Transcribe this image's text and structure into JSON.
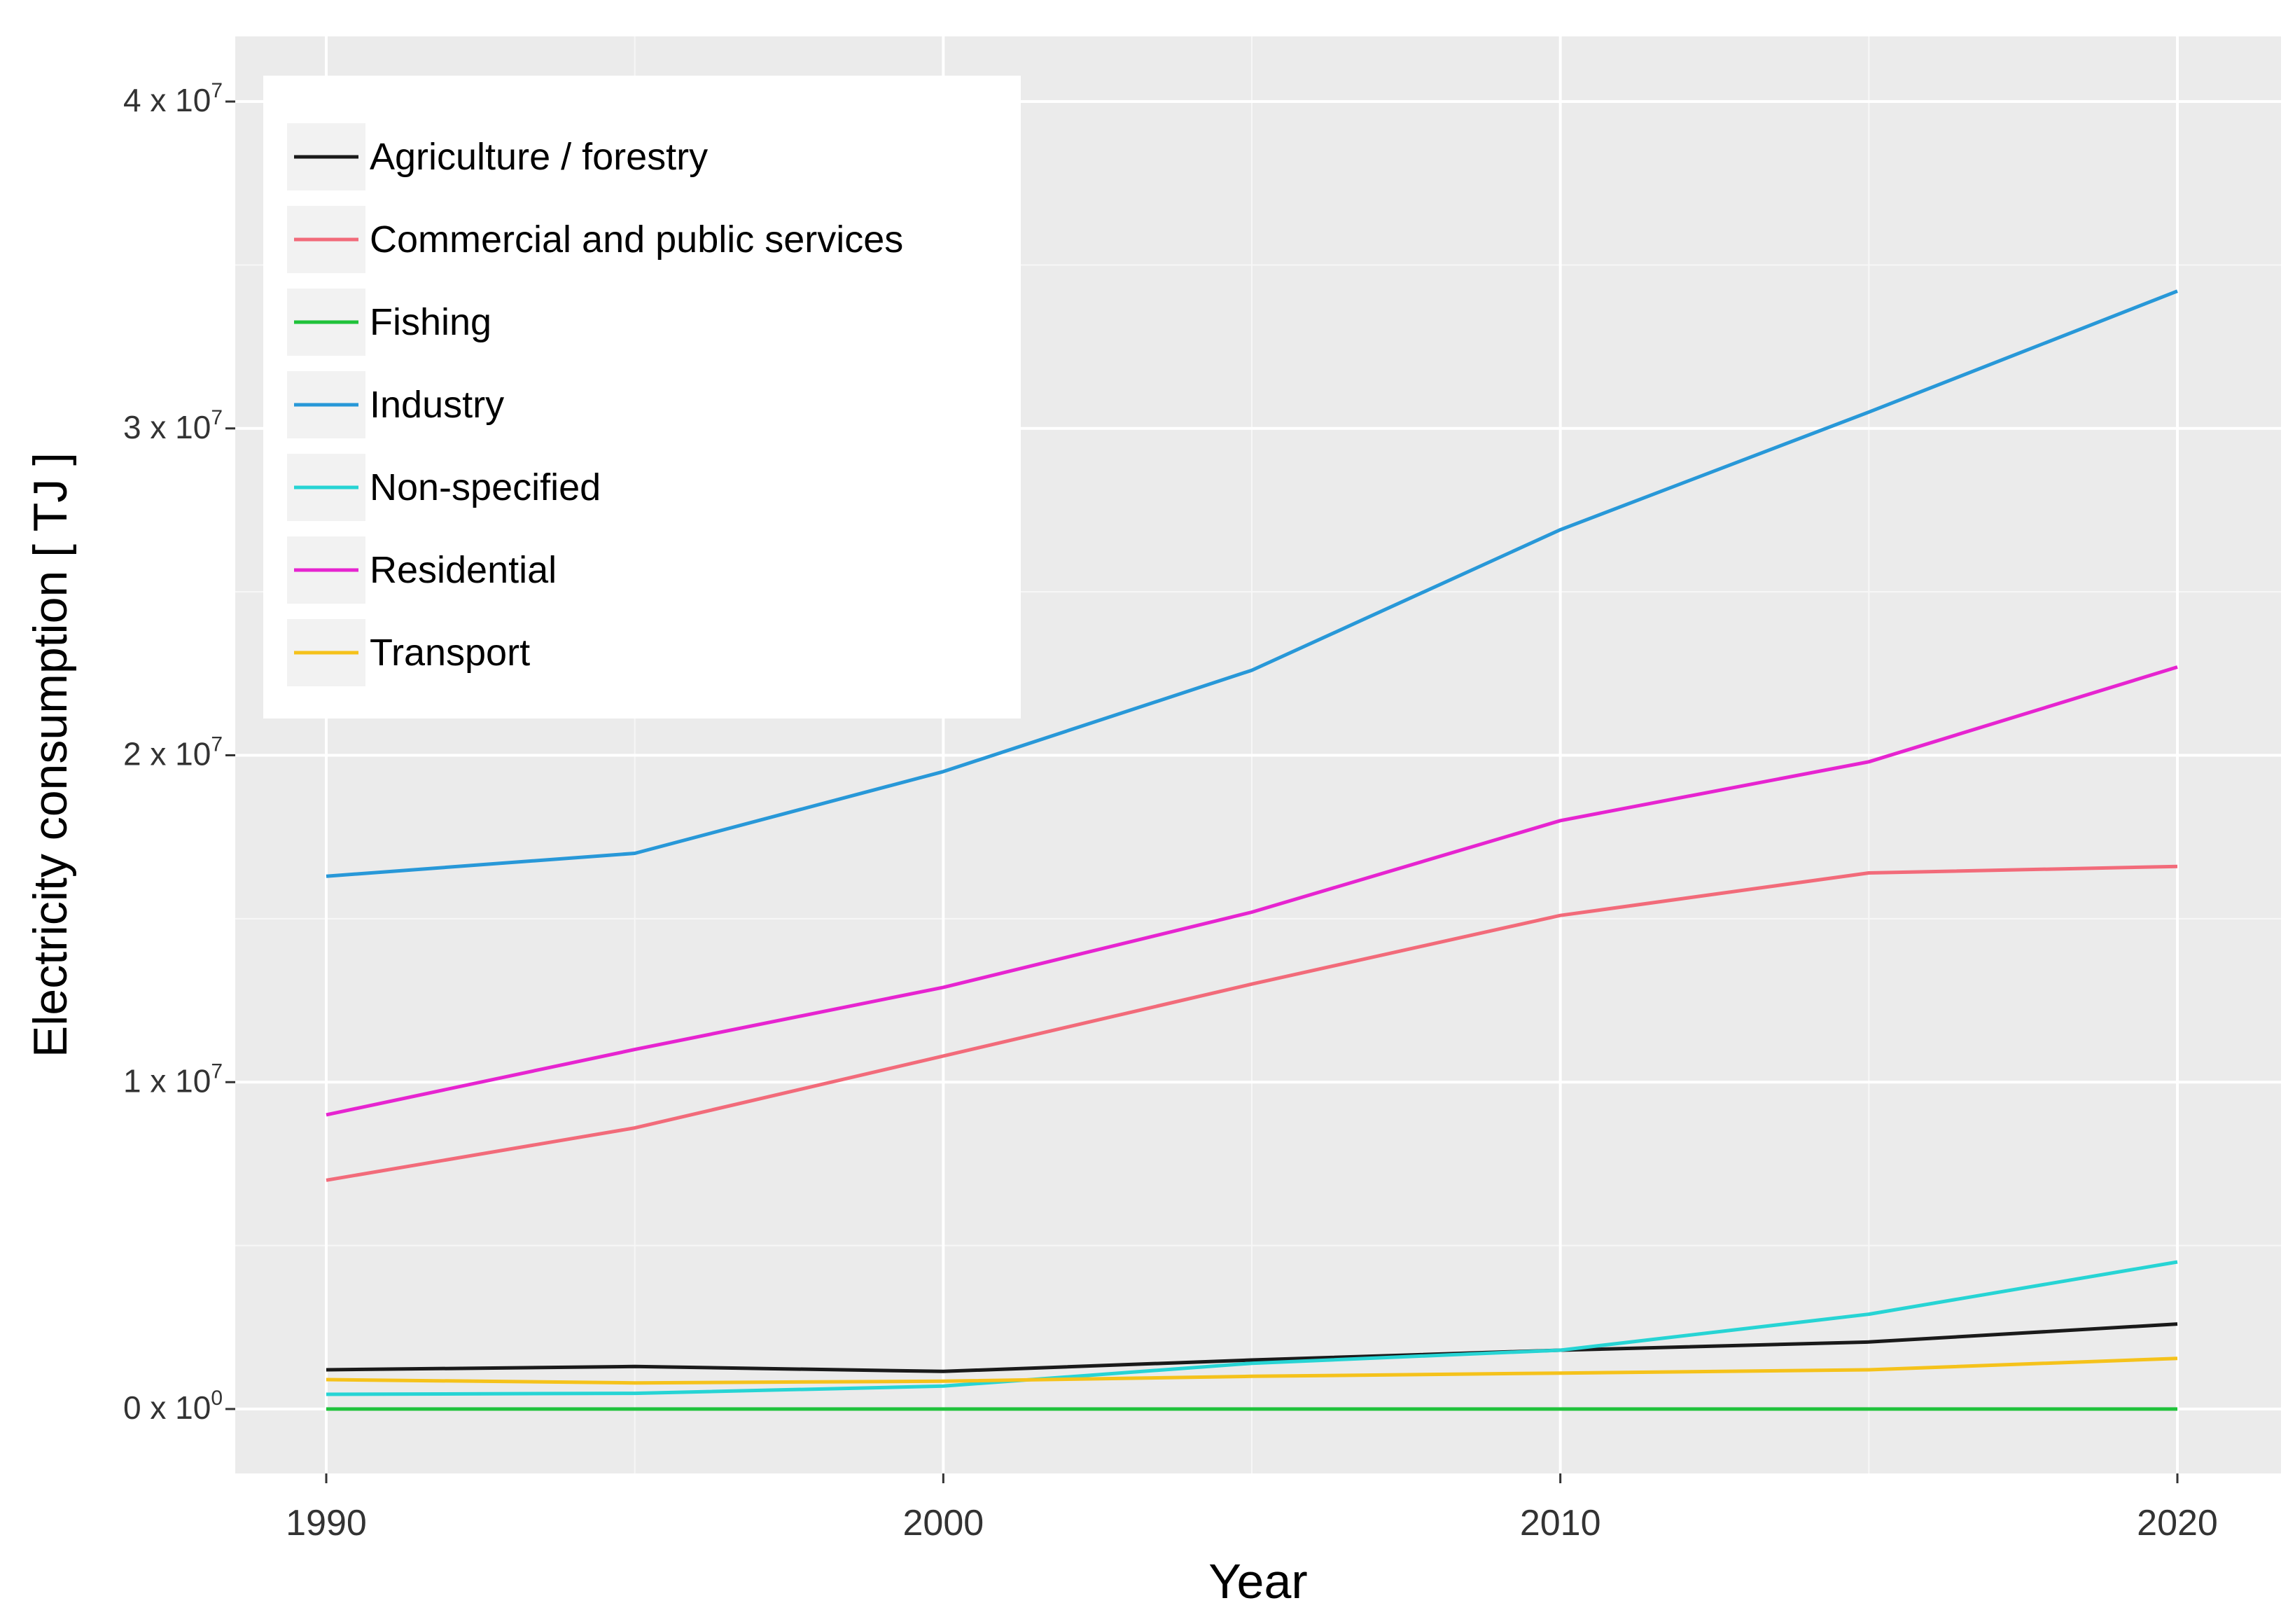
{
  "chart_data": {
    "type": "line",
    "title": "",
    "xlabel": "Year",
    "ylabel": "Electricity consumption [ TJ ]",
    "x": [
      1990,
      1995,
      2000,
      2005,
      2010,
      2015,
      2020
    ],
    "xlim": [
      1990,
      2020
    ],
    "ylim": [
      0,
      40000000
    ],
    "x_ticks": [
      {
        "value": 1990,
        "label": "1990"
      },
      {
        "value": 2000,
        "label": "2000"
      },
      {
        "value": 2010,
        "label": "2010"
      },
      {
        "value": 2020,
        "label": "2020"
      }
    ],
    "y_ticks": [
      {
        "value": 0,
        "mantissa": "0 x 10",
        "exp": "0"
      },
      {
        "value": 10000000,
        "mantissa": "1 x 10",
        "exp": "7"
      },
      {
        "value": 20000000,
        "mantissa": "2 x 10",
        "exp": "7"
      },
      {
        "value": 30000000,
        "mantissa": "3 x 10",
        "exp": "7"
      },
      {
        "value": 40000000,
        "mantissa": "4 x 10",
        "exp": "7"
      }
    ],
    "grid": true,
    "legend_position": "top-left",
    "series": [
      {
        "name": "Agriculture / forestry",
        "color": "#1a1a1a",
        "values": [
          1200000,
          1300000,
          1150000,
          1500000,
          1800000,
          2050000,
          2600000
        ]
      },
      {
        "name": "Commercial and public services",
        "color": "#f26b7a",
        "values": [
          7000000,
          8600000,
          10800000,
          13000000,
          15100000,
          16400000,
          16600000
        ]
      },
      {
        "name": "Fishing",
        "color": "#1fc23a",
        "values": [
          0,
          0,
          0,
          0,
          0,
          0,
          0
        ]
      },
      {
        "name": "Industry",
        "color": "#2898d8",
        "values": [
          16300000,
          17000000,
          19500000,
          22600000,
          26900000,
          30500000,
          34200000
        ]
      },
      {
        "name": "Non-specified",
        "color": "#27d4d4",
        "values": [
          450000,
          480000,
          700000,
          1400000,
          1800000,
          2900000,
          4500000
        ]
      },
      {
        "name": "Residential",
        "color": "#e624d0",
        "values": [
          9000000,
          11000000,
          12900000,
          15200000,
          18000000,
          19800000,
          22700000
        ]
      },
      {
        "name": "Transport",
        "color": "#f5c21b",
        "values": [
          900000,
          800000,
          850000,
          1000000,
          1100000,
          1200000,
          1550000
        ]
      }
    ]
  }
}
